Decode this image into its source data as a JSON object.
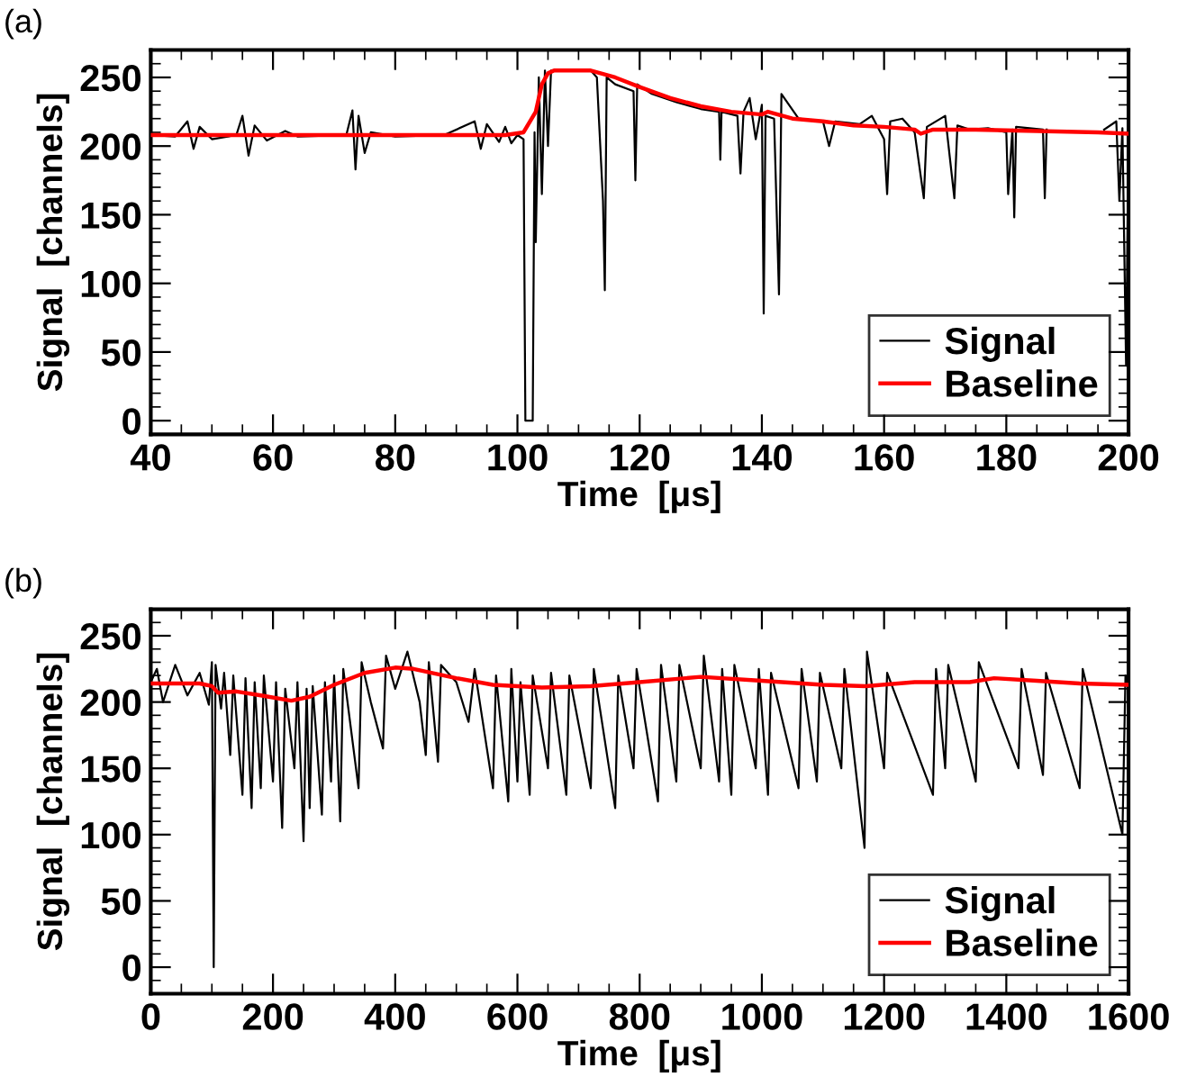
{
  "chart_data": [
    {
      "type": "line",
      "title": "(a)",
      "xlabel": "Time  [μs]",
      "ylabel": "Signal  [channels]",
      "xlim": [
        40,
        200
      ],
      "xticks": [
        40,
        60,
        80,
        100,
        120,
        140,
        160,
        180,
        200
      ],
      "ylim": [
        -10,
        270
      ],
      "yticks": [
        0,
        50,
        100,
        150,
        200,
        250
      ],
      "grid": false,
      "legend": "lower right",
      "marker": "none",
      "line_style": "solid",
      "series": [
        {
          "name": "Signal",
          "color": "#000000",
          "x": [
            40,
            44,
            46,
            47,
            48,
            50,
            54,
            55,
            56,
            57,
            59,
            62,
            64,
            72,
            73,
            73.5,
            74,
            75,
            76,
            80,
            88,
            93,
            94,
            95,
            97,
            98,
            99,
            100,
            101,
            101.3,
            102.5,
            102.8,
            103,
            103.5,
            104,
            104.5,
            105,
            105.5,
            112,
            113,
            114,
            114.3,
            114.6,
            116,
            119,
            119.3,
            119.6,
            122,
            126,
            130,
            133,
            133.2,
            133.4,
            136,
            136.5,
            137,
            138,
            139,
            140,
            140.3,
            140.6,
            142,
            142.8,
            143.2,
            146,
            150,
            151,
            152,
            156,
            158,
            160,
            160.5,
            161,
            163,
            165,
            166.5,
            167,
            170,
            171.5,
            172,
            174,
            177,
            180,
            180.3,
            181,
            181.3,
            181.6,
            186,
            186.3,
            186.6,
            190,
            196,
            198,
            198.5,
            199,
            199.6,
            200
          ],
          "values": [
            208,
            207,
            218,
            198,
            214,
            205,
            208,
            222,
            193,
            215,
            204,
            211,
            207,
            208,
            226,
            183,
            222,
            195,
            210,
            207,
            208,
            218,
            198,
            216,
            203,
            214,
            202,
            208,
            205,
            0,
            0,
            210,
            130,
            250,
            165,
            255,
            200,
            255,
            255,
            250,
            160,
            95,
            250,
            245,
            240,
            175,
            245,
            238,
            232,
            227,
            225,
            190,
            225,
            222,
            180,
            225,
            235,
            205,
            230,
            78,
            222,
            220,
            92,
            238,
            220,
            218,
            200,
            218,
            216,
            222,
            205,
            165,
            218,
            220,
            210,
            162,
            214,
            222,
            162,
            215,
            212,
            213,
            210,
            165,
            212,
            148,
            214,
            212,
            162,
            212,
            null,
            212,
            218,
            160,
            213,
            40,
            212
          ]
        },
        {
          "name": "Baseline",
          "color": "#ff0000",
          "x": [
            40,
            60,
            80,
            98,
            101,
            103,
            104,
            105,
            106,
            112,
            116,
            120,
            125,
            130,
            135,
            140,
            141,
            145,
            150,
            155,
            160,
            165,
            166,
            168,
            175,
            185,
            195,
            200
          ],
          "values": [
            208,
            208,
            208,
            208,
            210,
            225,
            245,
            253,
            255,
            255,
            250,
            243,
            235,
            229,
            225,
            223,
            225,
            220,
            218,
            215,
            214,
            212,
            209,
            212,
            212,
            211,
            210,
            209
          ]
        }
      ]
    },
    {
      "type": "line",
      "title": "(b)",
      "xlabel": "Time  [μs]",
      "ylabel": "Signal  [channels]",
      "xlim": [
        0,
        1600
      ],
      "xticks": [
        0,
        200,
        400,
        600,
        800,
        1000,
        1200,
        1400,
        1600
      ],
      "ylim": [
        -20,
        270
      ],
      "yticks": [
        0,
        50,
        100,
        150,
        200,
        250
      ],
      "grid": false,
      "legend": "lower right",
      "marker": "none",
      "line_style": "solid",
      "series": [
        {
          "name": "Signal",
          "color": "#000000",
          "x": [
            0,
            10,
            20,
            40,
            60,
            80,
            95,
            100,
            103,
            106,
            115,
            120,
            130,
            135,
            150,
            155,
            165,
            170,
            180,
            185,
            200,
            205,
            215,
            220,
            235,
            240,
            250,
            255,
            260,
            265,
            280,
            285,
            295,
            300,
            310,
            315,
            340,
            345,
            360,
            380,
            385,
            400,
            420,
            440,
            450,
            455,
            470,
            475,
            500,
            520,
            530,
            560,
            565,
            585,
            590,
            600,
            605,
            620,
            625,
            650,
            655,
            680,
            685,
            720,
            725,
            760,
            765,
            790,
            795,
            830,
            835,
            860,
            865,
            900,
            905,
            930,
            935,
            950,
            955,
            990,
            995,
            1010,
            1015,
            1060,
            1065,
            1090,
            1095,
            1130,
            1135,
            1168,
            1172,
            1200,
            1205,
            1280,
            1285,
            1300,
            1305,
            1350,
            1355,
            1420,
            1425,
            1460,
            1465,
            1520,
            1525,
            1590,
            1595,
            1600
          ],
          "values": [
            215,
            225,
            200,
            228,
            205,
            222,
            198,
            230,
            0,
            228,
            195,
            222,
            160,
            220,
            130,
            218,
            120,
            215,
            135,
            220,
            140,
            215,
            105,
            210,
            150,
            215,
            95,
            210,
            120,
            212,
            115,
            215,
            140,
            220,
            110,
            225,
            135,
            230,
            200,
            165,
            235,
            210,
            238,
            200,
            160,
            230,
            155,
            228,
            215,
            185,
            225,
            135,
            220,
            125,
            225,
            140,
            215,
            130,
            220,
            150,
            222,
            130,
            220,
            135,
            225,
            120,
            220,
            150,
            225,
            125,
            228,
            140,
            228,
            150,
            235,
            140,
            225,
            130,
            228,
            150,
            225,
            130,
            222,
            135,
            225,
            140,
            222,
            150,
            225,
            90,
            238,
            150,
            222,
            130,
            225,
            150,
            228,
            140,
            230,
            150,
            225,
            145,
            222,
            135,
            225,
            100,
            220,
            212
          ]
        },
        {
          "name": "Baseline",
          "color": "#ff0000",
          "x": [
            0,
            80,
            100,
            110,
            140,
            180,
            230,
            260,
            300,
            350,
            400,
            430,
            500,
            560,
            640,
            720,
            800,
            900,
            1000,
            1100,
            1170,
            1250,
            1340,
            1380,
            1450,
            1520,
            1600
          ],
          "values": [
            214,
            214,
            212,
            207,
            208,
            205,
            201,
            204,
            213,
            222,
            226,
            225,
            218,
            213,
            211,
            212,
            215,
            219,
            216,
            213,
            212,
            215,
            215,
            218,
            216,
            214,
            213
          ]
        }
      ]
    }
  ]
}
